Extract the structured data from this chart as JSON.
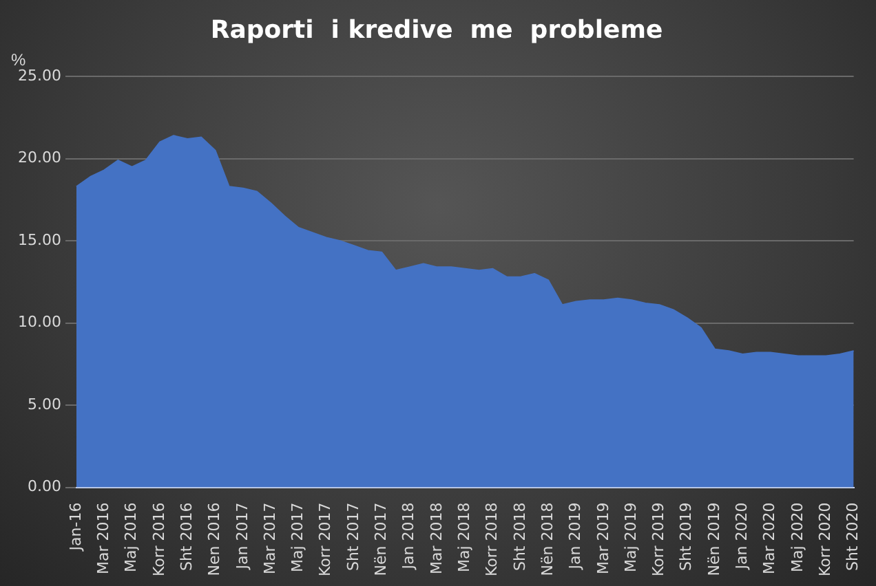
{
  "chart_data": {
    "type": "area",
    "title": "Raporti  i kredive  me  probleme",
    "ylabel": "%",
    "categories": [
      "Jan-16",
      null,
      "Mar 2016",
      null,
      "Maj 2016",
      null,
      "Korr 2016",
      null,
      "Sht 2016",
      null,
      "Nen 2016",
      null,
      "Jan 2017",
      null,
      "Mar 2017",
      null,
      "Maj 2017",
      null,
      "Korr 2017",
      null,
      "Sht 2017",
      null,
      "Nën 2017",
      null,
      "Jan 2018",
      null,
      "Mar 2018",
      null,
      "Maj 2018",
      null,
      "Korr 2018",
      null,
      "Sht 2018",
      null,
      "Nën 2018",
      null,
      "Jan 2019",
      null,
      "Mar 2019",
      null,
      "Maj 2019",
      null,
      "Korr 2019",
      null,
      "Sht 2019",
      null,
      "Nën 2019",
      null,
      "Jan 2020",
      null,
      "Mar 2020",
      null,
      "Maj 2020",
      null,
      "Korr 2020",
      null,
      "Sht 2020"
    ],
    "values": [
      18.3,
      18.9,
      19.3,
      19.9,
      19.5,
      19.9,
      21.0,
      21.4,
      21.2,
      21.3,
      20.5,
      18.3,
      18.2,
      18.0,
      17.3,
      16.5,
      15.8,
      15.5,
      15.2,
      15.0,
      14.7,
      14.4,
      14.3,
      13.2,
      13.4,
      13.6,
      13.4,
      13.4,
      13.3,
      13.2,
      13.3,
      12.8,
      12.8,
      13.0,
      12.6,
      11.1,
      11.3,
      11.4,
      11.4,
      11.5,
      11.4,
      11.2,
      11.1,
      10.8,
      10.3,
      9.7,
      8.4,
      8.3,
      8.1,
      8.2,
      8.2,
      8.1,
      8.0,
      8.0,
      8.0,
      8.1,
      8.3
    ],
    "color": "#4472c4",
    "ylim": [
      0,
      25
    ],
    "yticks": [
      {
        "value": 0,
        "label": "0.00"
      },
      {
        "value": 5,
        "label": "5.00"
      },
      {
        "value": 10,
        "label": "10.00"
      },
      {
        "value": 15,
        "label": "15.00"
      },
      {
        "value": 20,
        "label": "20.00"
      },
      {
        "value": 25,
        "label": "25.00"
      }
    ],
    "grid": "y",
    "legend": false
  }
}
